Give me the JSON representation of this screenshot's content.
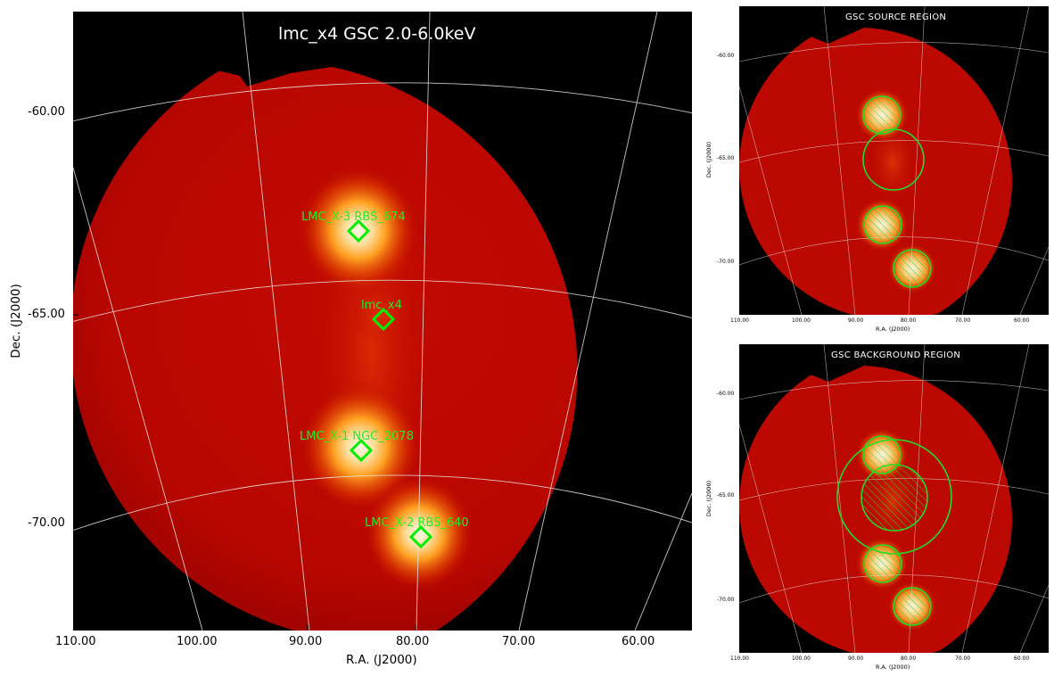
{
  "main": {
    "title": "lmc_x4 GSC 2.0-6.0keV",
    "xlabel": "R.A. (J2000)",
    "ylabel": "Dec. (J2000)",
    "ra_ticks": [
      "110.00",
      "100.00",
      "90.00",
      "80.00",
      "70.00",
      "60.00"
    ],
    "dec_ticks": [
      "-60.00",
      "-65.00",
      "-70.00"
    ],
    "sources": [
      {
        "name": "LMC_X-3 RBS_674"
      },
      {
        "name": "lmc_x4"
      },
      {
        "name": "LMC_X-1 NGC_2078"
      },
      {
        "name": "LMC_X-2 RBS_640"
      }
    ],
    "marker_color": "#00ee00"
  },
  "source_panel": {
    "title": "GSC SOURCE REGION",
    "xlabel": "R.A. (J2000)",
    "ylabel": "Dec. (J2000)",
    "ra_ticks": [
      "110.00",
      "100.00",
      "90.00",
      "80.00",
      "70.00",
      "60.00"
    ],
    "dec_ticks": [
      "-60.00",
      "-65.00",
      "-70.00"
    ]
  },
  "background_panel": {
    "title": "GSC BACKGROUND REGION",
    "xlabel": "R.A. (J2000)",
    "ylabel": "Dec. (J2000)",
    "ra_ticks": [
      "110.00",
      "100.00",
      "90.00",
      "80.00",
      "70.00",
      "60.00"
    ],
    "dec_ticks": [
      "-60.00",
      "-65.00",
      "-70.00"
    ]
  },
  "colors": {
    "disk": "#bb0800",
    "source_core": "#fff2d8",
    "source_glow": "#ff8000",
    "background": "#000000",
    "grid": "#e8e8e8",
    "region": "#22dd22"
  }
}
